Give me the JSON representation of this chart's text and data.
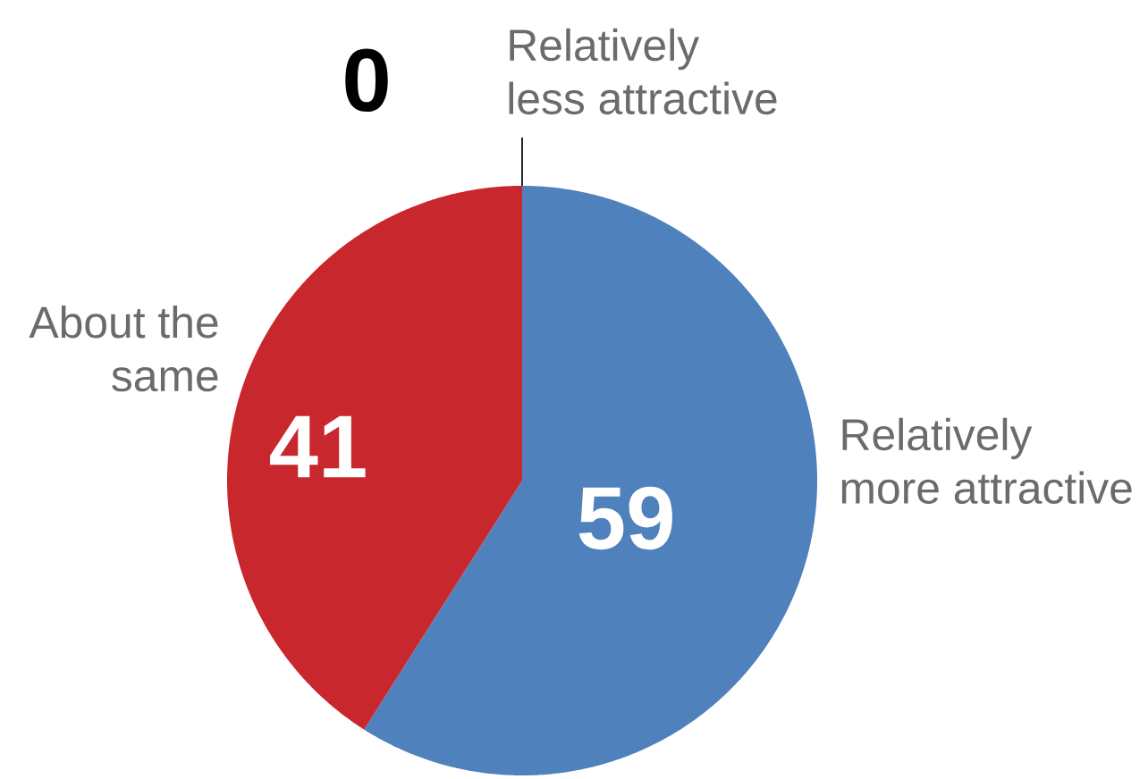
{
  "chart_data": {
    "type": "pie",
    "categories": [
      "Relatively more attractive",
      "About the same",
      "Relatively less attractive"
    ],
    "values": [
      59,
      41,
      0
    ],
    "colors": [
      "#4f81bd",
      "#c8282d",
      "#262626"
    ],
    "value_labels": [
      "59",
      "41",
      "0"
    ]
  }
}
